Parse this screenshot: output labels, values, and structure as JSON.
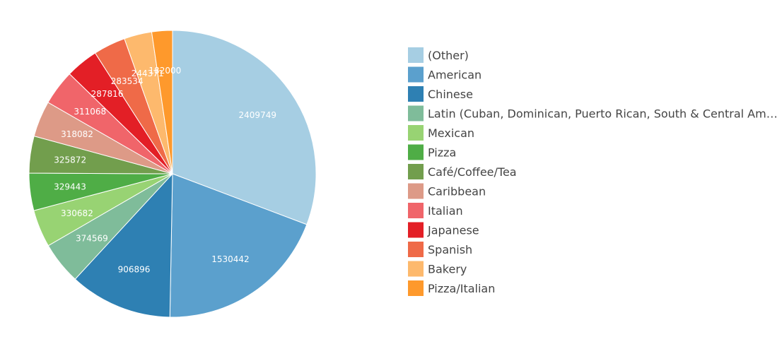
{
  "chart_data": {
    "type": "pie",
    "title": "",
    "legend_position": "right",
    "slices": [
      {
        "label": "(Other)",
        "value": 2409749,
        "color": "#a6cee3"
      },
      {
        "label": "American",
        "value": 1530442,
        "color": "#5ba0cd"
      },
      {
        "label": "Chinese",
        "value": 906896,
        "color": "#2e80b3"
      },
      {
        "label": "Latin (Cuban, Dominican, Puerto Rican, South & Central Am…",
        "value": 374569,
        "color": "#7fbc9a"
      },
      {
        "label": "Mexican",
        "value": 330682,
        "color": "#98d373"
      },
      {
        "label": "Pizza",
        "value": 329443,
        "color": "#4fad46"
      },
      {
        "label": "Café/Coffee/Tea",
        "value": 325872,
        "color": "#729e4d"
      },
      {
        "label": "Caribbean",
        "value": 318082,
        "color": "#dd9a87"
      },
      {
        "label": "Italian",
        "value": 311068,
        "color": "#f0656a"
      },
      {
        "label": "Japanese",
        "value": 287816,
        "color": "#e31f26"
      },
      {
        "label": "Spanish",
        "value": 283534,
        "color": "#ef6a48"
      },
      {
        "label": "Bakery",
        "value": 244371,
        "color": "#fdb96d"
      },
      {
        "label": "Pizza/Italian",
        "value": 182000,
        "color": "#fe992c"
      }
    ]
  }
}
